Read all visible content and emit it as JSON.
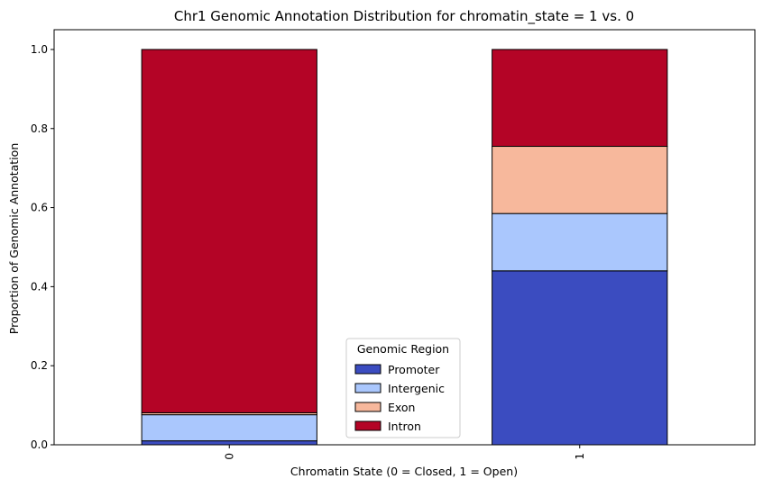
{
  "chart_data": {
    "type": "bar",
    "stacked": true,
    "title": "Chr1 Genomic Annotation Distribution for chromatin_state = 1 vs. 0",
    "xlabel": "Chromatin State (0 = Closed, 1 = Open)",
    "ylabel": "Proportion of Genomic Annotation",
    "categories": [
      "0",
      "1"
    ],
    "ylim": [
      0,
      1.05
    ],
    "yticks": [
      0.0,
      0.2,
      0.4,
      0.6,
      0.8,
      1.0
    ],
    "ytick_labels": [
      "0.0",
      "0.2",
      "0.4",
      "0.6",
      "0.8",
      "1.0"
    ],
    "grid": false,
    "legend": {
      "title": "Genomic Region",
      "placement": "lower-center"
    },
    "series": [
      {
        "name": "Promoter",
        "color": "#3b4cc0",
        "values": [
          0.01,
          0.44
        ]
      },
      {
        "name": "Intergenic",
        "color": "#aac7fd",
        "values": [
          0.066,
          0.145
        ]
      },
      {
        "name": "Exon",
        "color": "#f7b89c",
        "values": [
          0.005,
          0.17
        ]
      },
      {
        "name": "Intron",
        "color": "#b40426",
        "values": [
          0.919,
          0.245
        ]
      }
    ]
  }
}
